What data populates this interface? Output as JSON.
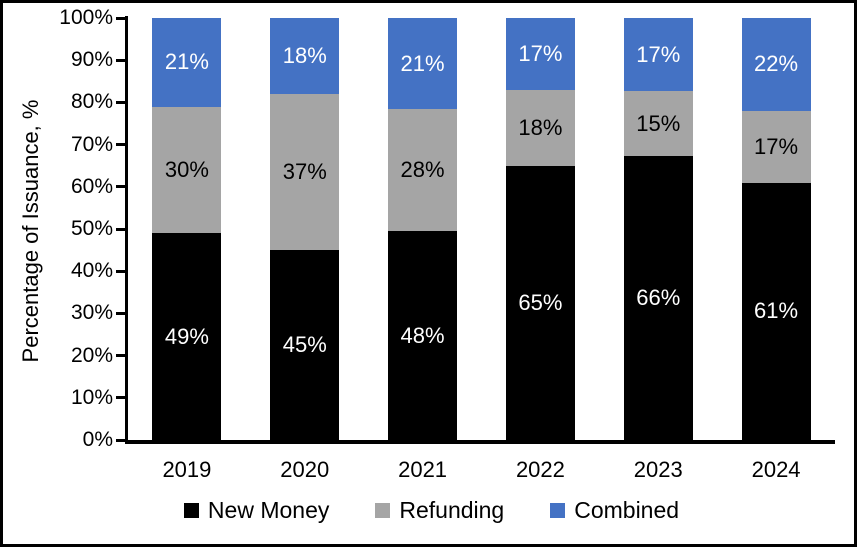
{
  "frame": {
    "background_color": "#ffffff",
    "border_color": "#000000"
  },
  "chart_data": {
    "type": "bar",
    "subtype": "stacked-100",
    "title": "",
    "xlabel": "",
    "ylabel": "Percentage of Issuance, %",
    "categories": [
      "2019",
      "2020",
      "2021",
      "2022",
      "2023",
      "2024"
    ],
    "series": [
      {
        "name": "New Money",
        "color": "#000000",
        "label_color": "#ffffff",
        "values": [
          49,
          45,
          48,
          65,
          66,
          61
        ]
      },
      {
        "name": "Refunding",
        "color": "#A5A5A5",
        "label_color": "#000000",
        "values": [
          30,
          37,
          28,
          18,
          15,
          17
        ]
      },
      {
        "name": "Combined",
        "color": "#4472C4",
        "label_color": "#ffffff",
        "values": [
          21,
          18,
          21,
          17,
          17,
          22
        ]
      }
    ],
    "data_label_suffix": "%",
    "y_axis": {
      "min": 0,
      "max": 100,
      "step": 10,
      "tick_labels": [
        "0%",
        "10%",
        "20%",
        "30%",
        "40%",
        "50%",
        "60%",
        "70%",
        "80%",
        "90%",
        "100%"
      ]
    },
    "grid": false,
    "legend_position": "bottom"
  }
}
